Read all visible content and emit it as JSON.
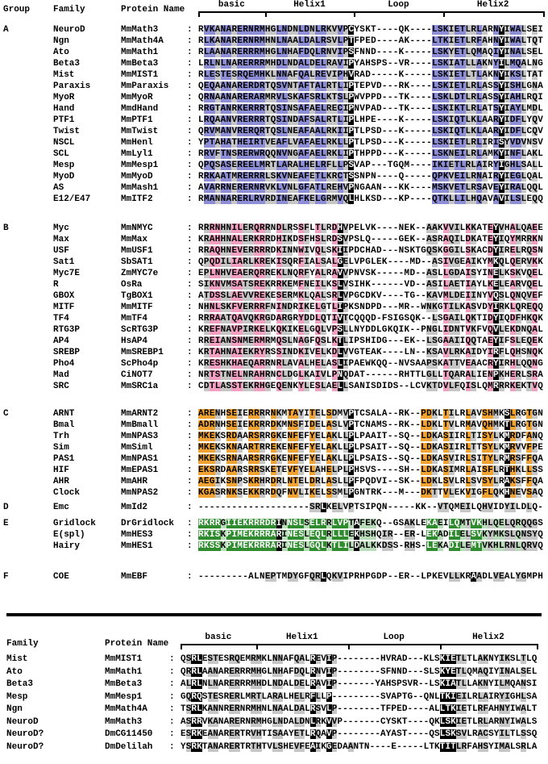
{
  "palette": {
    "gray": "#c6c6c6",
    "black": "#000000",
    "white": "#ffffff"
  },
  "top": {
    "col_headers": {
      "group": "Group",
      "family": "Family",
      "protein": "Protein Name"
    },
    "regions": [
      {
        "label": "basic",
        "from": 0,
        "to": 12
      },
      {
        "label": "Helix1",
        "from": 12,
        "to": 28
      },
      {
        "label": "Loop",
        "from": 28,
        "to": 44
      },
      {
        "label": "Helix2",
        "from": 44,
        "to": 62
      }
    ],
    "groups": [
      {
        "label": "A",
        "scheme": "A",
        "rows": [
          {
            "family": "NeuroD",
            "protein": "MmMath3",
            "seq": "RVKANARERNRMHGLNDNLDNLRKVVPCYSKT----QK----LSKIETLRLARNYIWALSEI"
          },
          {
            "family": "Ngn",
            "protein": "MmMath4A",
            "seq": "RLKANARERNRMHNLNAALDALRSVLPTFPED----AK----LTKIETLRFAHNYIWALTQT"
          },
          {
            "family": "Ato",
            "protein": "MmMath1",
            "seq": "RLAANARERRRMHGLNHAFDQLRNVIPSFNND----K-----LSKYETLQMAQIYINALSEL"
          },
          {
            "family": "Beta3",
            "protein": "MmBeta3",
            "seq": "LRLNLNARERRRMHDLNDALDELRAVIPYAHSPS--VR----LSKIATLLAKNYILMQALNG"
          },
          {
            "family": "Mist",
            "protein": "MmMIST1",
            "seq": "RLESTESRQEMHKLNNAFQALREVIPHVRAD-----K-----LSKIETLTLAKNYIKSLTAT"
          },
          {
            "family": "Paraxis",
            "protein": "MmParaxis",
            "seq": "QEQAANARERDRTQSVNTAFTALRTLIPTEPVD---RK----LSKIETLRLASSYISHLGNA"
          },
          {
            "family": "MyoR",
            "protein": "MmMyoR",
            "seq": "QRNAANARERARMRVLSKAFSRLKTSLPWVPPD---TK----LSKLDTLRLASSYIAHLRQI"
          },
          {
            "family": "Hand",
            "protein": "MmdHand",
            "seq": "RRGTANRKERRRTQSINSAFAELRECIPNVPAD---TK----LSKIKTLRLATSYIAYLMDL"
          },
          {
            "family": "PTF1",
            "protein": "MmPTF1",
            "seq": "LRQAANVRERRRTQSINDAFSALRTLIPLHPE----K-----LSKIQTLKLAARYIDFLYQV"
          },
          {
            "family": "Twist",
            "protein": "MmTwist",
            "seq": "QRVMANVRERQRTQSLNEAFAALRKIIPTLPSD---K-----LSKIQTLKLAARYIDFLCQV"
          },
          {
            "family": "NSCL",
            "protein": "MmHenl",
            "seq": "YPTAHATHEIRTVEAFLVAFAELRKLLPTLPSD---K-----LSKIETLRLIRISYVDVNSV"
          },
          {
            "family": "SCL",
            "protein": "MmLyl1",
            "seq": "RRVFTNSRERWRQQNVNGAFAELRKLIPTHPPD---K-----LSKNEILRLAMKYINFLAKL"
          },
          {
            "family": "Mesp",
            "protein": "MmMesp1",
            "seq": "QPQSASEREELMRTLARALHELRFLLPSVAP---TGQM----IKIETLRLAIRYIGHLSALL"
          },
          {
            "family": "MyoD",
            "protein": "MmMyoD",
            "seq": "RRKAATMRERRRLSKVNEAFETLKRCTSSNPN----Q-----QPKVEILRNAIRYIEGLQAL"
          },
          {
            "family": "AS",
            "protein": "MmMash1",
            "seq": "AVARRNERERNRVKLVNLGFATLREHVPNGAAN---KK----MSKVETLRSAVEYIRALQQL"
          },
          {
            "family": "E12/E47",
            "protein": "MmITF2",
            "seq": "RMANNARERLRVRDINEAFKELGRMVQLHLKSD---KP----QTKLLILHQAVAVILSLEQQ"
          }
        ]
      },
      {
        "label": "B",
        "scheme": "B",
        "rows": [
          {
            "family": "Myc",
            "protein": "MmNMYC",
            "seq": "RRRNHNILERQRRNDLRSSFLTLRDHVPELVK----NEK--AAKVVILKKATEYVHALQAEE"
          },
          {
            "family": "Max",
            "protein": "MmMax",
            "seq": "KRAHHNALERKRRDHIKDSFHSLRDSVPSLQ-----GEK--ASRAQILDKATEYIQYMRRKN"
          },
          {
            "family": "USF",
            "protein": "MmUSF1",
            "seq": "RRAQHNEVERRRRDKINNWIVQLSKIIPDCHAD---NSKTGQSKGGILSKACDYIRELRQSN"
          },
          {
            "family": "Sat1",
            "protein": "SbSAT1",
            "seq": "QPQDILIARLKREKISQRFIALSALGELVPGLEK----MD--ASIVGEAIKYMKQLQERVKK"
          },
          {
            "family": "Myc7E",
            "protein": "ZmMYC7e",
            "seq": "EPLNHVEAERQRREKLNQRFYALRAVVPNVSK-----MD--ASLLGDAISYINELKSKVQEL"
          },
          {
            "family": "R",
            "protein": "OsRa",
            "seq": "SIKNVMSATSREKRRKEMFNEILKSLVSIHK------VD--ASILAETIAYLKELEARVQEL"
          },
          {
            "family": "GBOX",
            "protein": "TgBOX1",
            "seq": "ATDSSLAEVVREKESERMKLQALSRLVPGCDKV----TG--KAVMLDEIINYVQSLQNQVEF"
          },
          {
            "family": "MITF",
            "protein": "MmMITF",
            "seq": "NHNLSKFVERRRFNINDRIKELGTLIPKSNDPD---MR--WNKGTILKASVDYIRKLQREQQ"
          },
          {
            "family": "TF4",
            "protein": "MmTF4",
            "seq": "RRRAATQAVQKRGDARGRYDDLQTIVTCQQQD-FSIGSQK--LSGAILQKTIDYIQDFHKQK"
          },
          {
            "family": "RTG3P",
            "protein": "ScRTG3P",
            "seq": "KREFNAVPIRKELKQKIKELGQLVPSLLNYDDLGKQIK--PNGLIDNTVKFVQVLEKDNQAL"
          },
          {
            "family": "AP4",
            "protein": "HsAP4",
            "seq": "RREIANSNMERMRMQSLNAGFQSLKTLIPSHIDG---EK--LSGAAIIQQTAEYIFSLEQEK"
          },
          {
            "family": "SREBP",
            "protein": "MmSREBP1",
            "seq": "KRTAHNAIEKRYRSSINDKIVELKDLVVGTEAK----LN--KSAVLRKAIDYIRFLQHSNQK"
          },
          {
            "family": "Pho4",
            "protein": "ScPho4p",
            "seq": "KRESHKHAEQARRNRLAVALHELASLIPAEWKQQ--NVSAAPSKATTVEAACRYIRHLQQNG"
          },
          {
            "family": "Mad",
            "protein": "CiNOT7",
            "seq": "NRTSTNELNRAHRNCLDGLKAIVLPNQDAT------RHTTLGLLTQARALIENPKHERLSRA"
          },
          {
            "family": "SRC",
            "protein": "MmSRC1a",
            "seq": "CDTLASSTEKRHGEQENKYLESLAELLSANISDIDS--LCVKTDVLFQISLQMRRRKEKTVQ"
          }
        ]
      },
      {
        "label": "C",
        "scheme": "C",
        "rows": [
          {
            "family": "ARNT",
            "protein": "MmARNT2",
            "seq": "ARENHSEIERRRRNKMTAYITELSDMVPTCSALA--RK--PDKLTILRLAVSHMKSLRGTGN"
          },
          {
            "family": "Bmal",
            "protein": "MmBmall",
            "seq": "ADRNHSEIEKRRRDKMNSFIDELASLVPTCNAMS--RK--LDKLTVLRMAVQHMKTLRGTGN"
          },
          {
            "family": "Trh",
            "protein": "MmNPAS3",
            "seq": "MKEKSRDAARSRRGKENFEFYELAKLLPLPAAIT--SQ--LDKASIIRLTISYLKMRDFANQ"
          },
          {
            "family": "Sim",
            "protein": "MmSiml",
            "seq": "MKEKSKNAARTRREKENFEFYELAKLLPLPSAIT--SQ--LDKASIIRLTTSYLKMRVVFPE"
          },
          {
            "family": "PAS1",
            "protein": "MmNPAS1",
            "seq": "MKEKSRNAARSRRGKENFEFYELAKLLPLPSAIS--SQ--LDKASVIRLSITYLRMRSFFQA"
          },
          {
            "family": "HIF",
            "protein": "MmEPAS1",
            "seq": "EKSRDAARSRRSKETEVFYELAHELPLPHSVS----SH--LDKASIMRLAISFLRTHKLLSS"
          },
          {
            "family": "AHR",
            "protein": "MmAHR",
            "seq": "AEGIKSNPSKRHRDRLNTELDRLASLLPFPQDVI--SK--LDKLSVLRLSVSYLRAKSFFQA"
          },
          {
            "family": "Clock",
            "protein": "MmNPAS2",
            "seq": "KGASRNKSEKKRRDQFNVLIKELSSMLPGNTRK---M---DKTTVLEKVIGFLQKHNEVSAQ"
          }
        ]
      },
      {
        "label": "D",
        "scheme": "D",
        "rows": [
          {
            "family": "Emc",
            "protein": "MmId2",
            "seq": "--------------------SRLKELVPTSIPQN-----KK--VTQMEILQHVIDYILDLQ-"
          }
        ]
      },
      {
        "label": "E",
        "scheme": "E",
        "rows": [
          {
            "family": "Gridlock",
            "protein": "DrGridlock",
            "seq": "RKRRGIIEKRRRDRINNSLSELRRLVPTAFEKQ--GSAKLEKAEILQMTVKHLQELQRQQGS"
          },
          {
            "family": "E(spl)",
            "protein": "MmHES3",
            "seq": "RKISKPIMEKRRRARINESLEQLRLLLEKHSHQIR--ER-LEKADILELSVKYMKSLQNSYQ"
          },
          {
            "family": "Hairy",
            "protein": "MmHES1",
            "seq": "RKSSKPIMEKRRRARINESLGQLKTLILDALKKDSS-RHS-LEKADILEMTVKHLRNLQRVQ"
          }
        ]
      },
      {
        "label": "F",
        "scheme": "F",
        "rows": [
          {
            "family": "COE",
            "protein": "MmEBF",
            "seq": "---------ALNEPTMDYGFQRLQKVIPRHPGDP--ER--LPKEVLLKRAADLVEALYGMPH"
          }
        ]
      }
    ]
  },
  "bottom": {
    "col_headers": {
      "family": "Family",
      "protein": "Protein Name"
    },
    "scheme": "bottom",
    "regions": [
      {
        "label": "basic",
        "from": 0,
        "to": 14
      },
      {
        "label": "Helix1",
        "from": 14,
        "to": 31
      },
      {
        "label": "Loop",
        "from": 31,
        "to": 48
      },
      {
        "label": "Helix2",
        "from": 48,
        "to": 66
      }
    ],
    "rows": [
      {
        "family": "Mist",
        "protein": "MmMIST1",
        "seq": "QSRLESTESRQEMRMKLNNAFQALREVIP--------HVRAD---KLSKIETLTLAKNYIKSLTLQ"
      },
      {
        "family": "Ato",
        "protein": "MmMath1",
        "seq": "QRRLAANARERRRMHGLNHAFDQLRNVIP--------SFNND---SLSKYETLQMAQIYINALSEL"
      },
      {
        "family": "Beta3",
        "protein": "MmBeta3",
        "seq": "ALRLNLNARERRRMHDLNDALDELRAVIP-------YAHSPSVR--LSKIATLLAKNYILMQANSI"
      },
      {
        "family": "Mesp",
        "protein": "MmMesp1",
        "seq": "GQRQSTESRERLMRTLARALHELRFLLP---------SVAPTG--QNLTKIEILRLAIRYIGHLSA"
      },
      {
        "family": "Ngn",
        "protein": "MmMath4A",
        "seq": "TSRLKANNRERNRMHNLNAALDALRSVLP--------TFPED----ALLTKIETLRFAHNYIWALT"
      },
      {
        "family": "NeuroD",
        "protein": "MmMath3",
        "seq": "ASRRVKANARERNRMHGLNDALDNLRKVVP-------CYSKT----QKLSKIETLRLARNYIWALS"
      },
      {
        "family": "NeuroD?",
        "protein": "DmCG11450",
        "seq": "ESRKEANARERTRVHTISAAYETLRQAVP--------AYAST----QSLSKSVLRACSYILTLSSQ"
      },
      {
        "family": "NeuroD?",
        "protein": "DmDelilah",
        "seq": "YSRKTANARERTRTHTVLSHEVFEAIKGEDAANTN----E-----LTKTITLRFAHSYIMALSRLA"
      }
    ]
  },
  "schemes": {
    "A": {
      "primary": {
        "color": "#8e8ed6",
        "cols": [
          1,
          2,
          4,
          5,
          7,
          8,
          9,
          10,
          11,
          14,
          15,
          18,
          19,
          21,
          22,
          25,
          42,
          43,
          44,
          46,
          47,
          50,
          53,
          56,
          57
        ]
      },
      "gray": [
        3,
        6,
        12,
        13,
        16,
        17,
        20,
        23,
        24,
        26,
        45,
        48,
        49,
        51,
        55,
        58,
        60
      ],
      "black": [
        27,
        54
      ]
    },
    "B": {
      "primary": {
        "color": "#f29fc1",
        "cols": [
          2,
          3,
          6,
          7,
          10,
          11,
          14,
          18,
          21,
          24,
          44,
          48,
          52,
          56,
          60
        ]
      },
      "gray": [
        1,
        4,
        5,
        8,
        9,
        12,
        15,
        16,
        19,
        22,
        26,
        41,
        42,
        45,
        46,
        49,
        54,
        57,
        59
      ],
      "black": [
        25,
        53
      ]
    },
    "C": {
      "primary": {
        "color": "#f0a232",
        "cols": [
          0,
          1,
          2,
          5,
          6,
          9,
          10,
          13,
          16,
          17,
          20,
          23,
          40,
          41,
          44,
          48,
          51,
          52,
          56,
          59
        ]
      },
      "gray": [
        3,
        7,
        11,
        14,
        18,
        21,
        24,
        26,
        42,
        45,
        49,
        53,
        57,
        60
      ],
      "black": [
        27,
        55
      ]
    },
    "D": {
      "gray": [
        20,
        21,
        24,
        25,
        27,
        43,
        44,
        47,
        48,
        51,
        52,
        55,
        56,
        59
      ],
      "black": [
        22
      ]
    },
    "E": {
      "primary": {
        "color": "#2e8b2e",
        "white": true,
        "cols": [
          0,
          1,
          2,
          3,
          5,
          6,
          7,
          8,
          9,
          10,
          11,
          12,
          13,
          16,
          17,
          18,
          20,
          21,
          22,
          24,
          25,
          26,
          41,
          42,
          45,
          46,
          49,
          50
        ]
      },
      "secondary": {
        "color": "#b9dcb9",
        "cols": [
          4,
          15,
          19,
          23,
          27,
          29,
          30,
          31,
          43,
          47,
          51,
          53,
          54,
          57
        ]
      },
      "gray": [
        33,
        34,
        37,
        38,
        48,
        52,
        55,
        56,
        58,
        59,
        60
      ],
      "black": [
        14,
        28
      ]
    },
    "F": {
      "gray": [
        12,
        13,
        16,
        17,
        20,
        21,
        24,
        25,
        45,
        46,
        50,
        53,
        54,
        57,
        58
      ],
      "black": [
        22,
        49
      ]
    },
    "bottom": {
      "gray": [
        1,
        5,
        6,
        9,
        10,
        13,
        14,
        17,
        18,
        21,
        22,
        25,
        28,
        31,
        51,
        52,
        55,
        56,
        59,
        60,
        63
      ],
      "black": [
        2,
        3,
        24,
        27,
        48,
        49,
        50
      ]
    }
  }
}
